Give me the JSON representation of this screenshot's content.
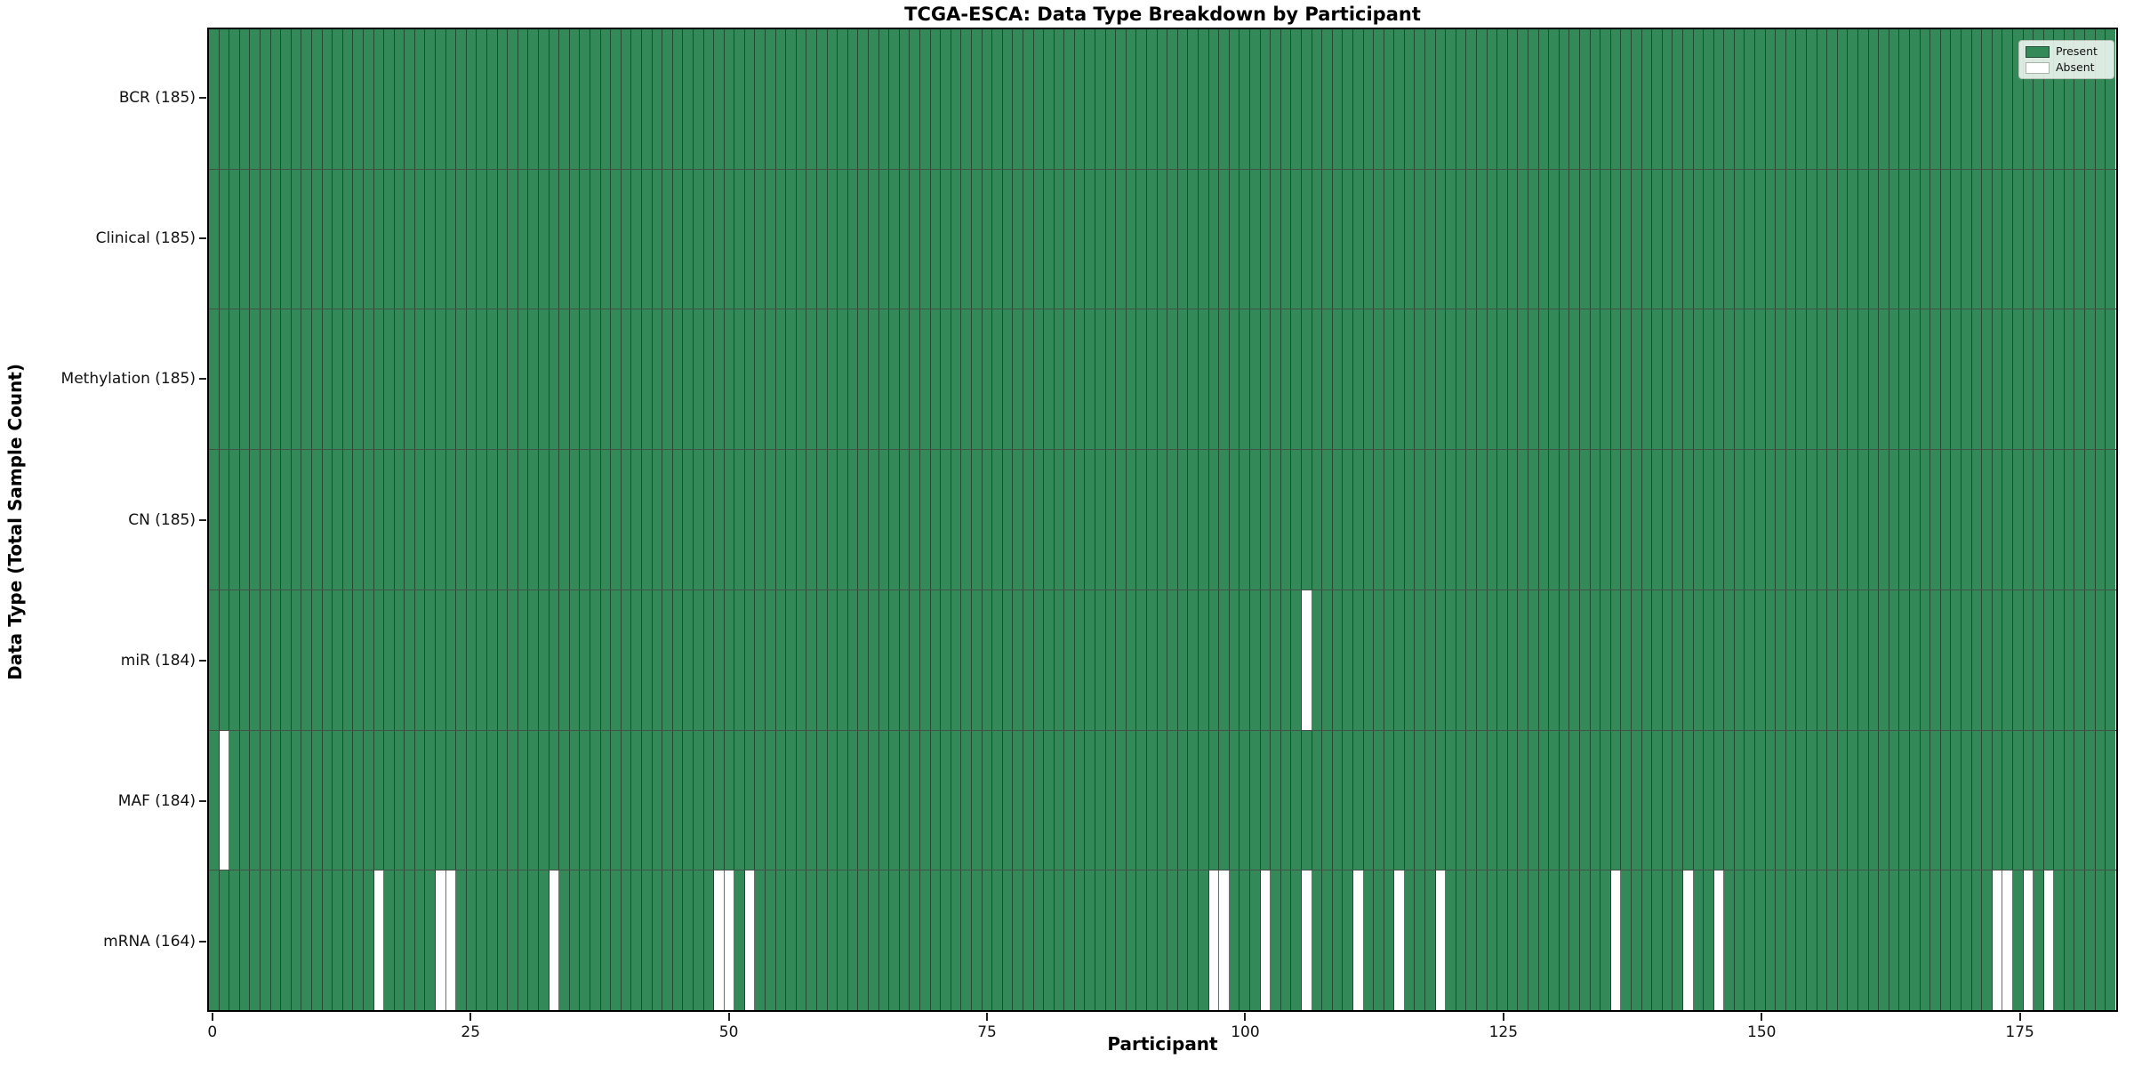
{
  "chart_data": {
    "type": "heatmap",
    "title": "TCGA-ESCA: Data Type Breakdown by Participant",
    "xlabel": "Participant",
    "ylabel": "Data Type (Total Sample Count)",
    "n_participants": 185,
    "x_ticks": [
      0,
      25,
      50,
      75,
      100,
      125,
      150,
      175
    ],
    "grid": false,
    "legend_position": "upper-right",
    "legend": [
      {
        "label": "Present",
        "color": "#338a58"
      },
      {
        "label": "Absent",
        "color": "#ffffff"
      }
    ],
    "rows": [
      {
        "label": "BCR",
        "total": 185,
        "display": "BCR (185)",
        "absent": []
      },
      {
        "label": "Clinical",
        "total": 185,
        "display": "Clinical (185)",
        "absent": []
      },
      {
        "label": "Methylation",
        "total": 185,
        "display": "Methylation (185)",
        "absent": []
      },
      {
        "label": "CN",
        "total": 185,
        "display": "CN (185)",
        "absent": []
      },
      {
        "label": "miR",
        "total": 184,
        "display": "miR (184)",
        "absent": [
          106
        ]
      },
      {
        "label": "MAF",
        "total": 184,
        "display": "MAF (184)",
        "absent": [
          1
        ]
      },
      {
        "label": "mRNA",
        "total": 164,
        "display": "mRNA (164)",
        "absent": [
          16,
          22,
          23,
          33,
          49,
          50,
          52,
          97,
          98,
          102,
          106,
          111,
          115,
          119,
          136,
          143,
          146,
          173,
          174,
          176,
          178
        ]
      }
    ],
    "colors": {
      "present": "#338a58",
      "absent": "#ffffff",
      "cell_edge": "rgba(22,42,30,0.65)",
      "row_edge": "rgba(20,38,28,0.8)",
      "spine": "#000000",
      "background": "#ffffff"
    }
  }
}
